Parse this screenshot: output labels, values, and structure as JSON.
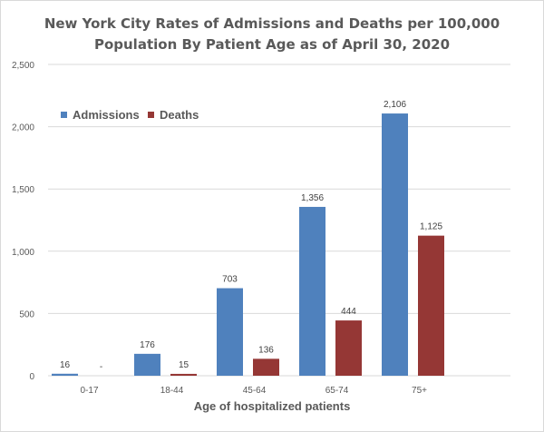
{
  "chart_data": {
    "type": "bar",
    "title_lines": [
      "New York City Rates of Admissions and Deaths per 100,000",
      "Population  By Patient Age as of April 30, 2020"
    ],
    "xlabel": "Age of hospitalized patients",
    "ylabel": "",
    "categories": [
      "0-17",
      "18-44",
      "45-64",
      "65-74",
      "75+"
    ],
    "series": [
      {
        "name": "Admissions",
        "color": "#4F81BD",
        "values": [
          16,
          176,
          703,
          1356,
          2106
        ],
        "labels": [
          "16",
          "176",
          "703",
          "1,356",
          "2,106"
        ]
      },
      {
        "name": "Deaths",
        "color": "#953735",
        "values": [
          0,
          15,
          136,
          444,
          1125
        ],
        "labels": [
          "-",
          "15",
          "136",
          "444",
          "1,125"
        ]
      }
    ],
    "ylim": [
      0,
      2500
    ],
    "yticks": [
      0,
      500,
      1000,
      1500,
      2000,
      2500
    ],
    "ytick_labels": [
      "0",
      "500",
      "1,000",
      "1,500",
      "2,000",
      "2,500"
    ],
    "grid": true,
    "legend_position": "top-left"
  }
}
